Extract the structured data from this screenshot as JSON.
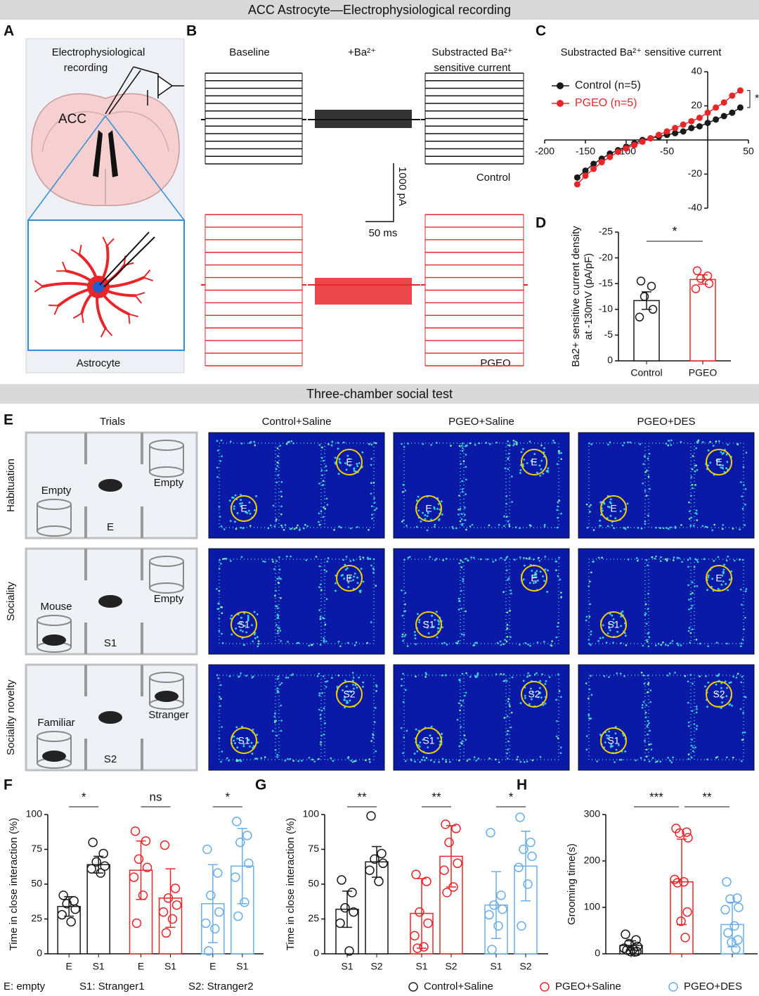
{
  "headers": [
    "ACC Astrocyte—Electrophysiological recording",
    "Three-chamber social test"
  ],
  "panel_letters": [
    "A",
    "B",
    "C",
    "D",
    "E",
    "F",
    "G",
    "H"
  ],
  "panel_a": {
    "recording_label": [
      "Electrophysiological",
      "recording"
    ],
    "region": "ACC",
    "cell": "Astrocyte"
  },
  "panel_b": {
    "columns": [
      "Baseline",
      "+Ba²⁺",
      "Substracted Ba²⁺",
      "sensitive current"
    ],
    "scale_current": "1000 pA",
    "scale_time": "50 ms",
    "groups": [
      "Control",
      "PGEO"
    ]
  },
  "panel_e": {
    "trials_title": "Trials",
    "columns": [
      "Control+Saline",
      "PGEO+Saline",
      "PGEO+DES"
    ],
    "rows": [
      "Habituation",
      "Sociality",
      "Sociality novelty"
    ],
    "schematic": [
      [
        "Empty",
        "Empty",
        "E"
      ],
      [
        "Mouse",
        "Empty",
        "S1"
      ],
      [
        "Familiar",
        "Stranger",
        "S2"
      ]
    ],
    "zones": [
      [
        "E",
        "E"
      ],
      [
        "S1",
        "E"
      ],
      [
        "S1",
        "S2"
      ]
    ]
  },
  "key": [
    "E: empty",
    "S1: Stranger1",
    "S2: Stranger2"
  ],
  "legend": [
    {
      "name": "Control+Saline",
      "color": "#1a1a1a"
    },
    {
      "name": "PGEO+Saline",
      "color": "#e8262a"
    },
    {
      "name": "PGEO+DES",
      "color": "#6aaee8"
    }
  ],
  "chart_data": [
    {
      "type": "line",
      "title": "Substracted Ba²⁺ sensitive current",
      "x": [
        -160,
        -150,
        -140,
        -130,
        -120,
        -110,
        -100,
        -90,
        -80,
        -70,
        -60,
        -50,
        -40,
        -30,
        -20,
        -10,
        0,
        10,
        20,
        30,
        40
      ],
      "series": [
        {
          "name": "Control (n=5)",
          "color": "#1a1a1a",
          "values": [
            -22,
            -18,
            -14,
            -11,
            -8,
            -6,
            -4,
            -2,
            0,
            1,
            2,
            3,
            4,
            5,
            7,
            8,
            10,
            12,
            14,
            16,
            19
          ]
        },
        {
          "name": "PGEO (n=5)",
          "color": "#e8262a",
          "values": [
            -26,
            -21,
            -17,
            -13,
            -10,
            -7,
            -5,
            -3,
            -1,
            1,
            3,
            5,
            7,
            9,
            11,
            13,
            16,
            19,
            22,
            26,
            29
          ]
        }
      ],
      "xlim": [
        -200,
        50
      ],
      "xticks": [
        -200,
        -150,
        -100,
        -50,
        50
      ],
      "ylim": [
        -40,
        40
      ],
      "yticks": [
        -40,
        -20,
        20,
        40
      ],
      "significance": "*"
    },
    {
      "type": "bar",
      "y_label": [
        "Ba2+ sensitive current density",
        "at -130mV (pA/pF)"
      ],
      "categories": [
        "Control",
        "PGEO"
      ],
      "values": [
        -11.7,
        -15.8
      ],
      "errors": [
        1.7,
        0.9
      ],
      "points": [
        [
          -15.5,
          -14.5,
          -12.5,
          -10,
          -8.5
        ],
        [
          -17.5,
          -16.5,
          -16,
          -15,
          -14
        ]
      ],
      "colors": [
        "#1a1a1a",
        "#e8262a"
      ],
      "ylim": [
        0,
        -25
      ],
      "yticks": [
        0,
        -5,
        -10,
        -15,
        -20,
        -25
      ],
      "significance": "*"
    },
    {
      "type": "grouped-bar",
      "y_label": "Time in close interaction (%)",
      "categories": [
        "E",
        "S1"
      ],
      "series": [
        {
          "color": "#1a1a1a",
          "values": [
            34,
            64
          ],
          "errors": [
            7,
            6
          ],
          "points": [
            [
              42,
              38,
              36,
              32,
              28,
              23
            ],
            [
              80,
              72,
              66,
              63,
              61,
              58
            ]
          ],
          "significance": "*"
        },
        {
          "color": "#e8262a",
          "values": [
            60,
            40
          ],
          "errors": [
            21,
            21
          ],
          "points": [
            [
              88,
              81,
              68,
              62,
              55,
              42,
              22
            ],
            [
              78,
              47,
              40,
              35,
              30,
              25,
              15
            ]
          ],
          "significance": "ns"
        },
        {
          "color": "#6aaee8",
          "values": [
            36,
            63
          ],
          "errors": [
            28,
            27
          ],
          "points": [
            [
              75,
              58,
              42,
              30,
              22,
              18,
              2
            ],
            [
              95,
              85,
              80,
              65,
              55,
              37,
              27
            ]
          ],
          "significance": "*"
        }
      ],
      "ylim": [
        0,
        100
      ],
      "yticks": [
        0,
        25,
        50,
        75,
        100
      ]
    },
    {
      "type": "grouped-bar",
      "y_label": "Time in close interaction (%)",
      "categories": [
        "S1",
        "S2"
      ],
      "series": [
        {
          "color": "#1a1a1a",
          "values": [
            32,
            66
          ],
          "errors": [
            13,
            11
          ],
          "points": [
            [
              53,
              44,
              33,
              30,
              22,
              2
            ],
            [
              99,
              72,
              68,
              65,
              60,
              52
            ]
          ],
          "significance": "**"
        },
        {
          "color": "#e8262a",
          "values": [
            29,
            70
          ],
          "errors": [
            25,
            22
          ],
          "points": [
            [
              57,
              52,
              30,
              22,
              13,
              5,
              4
            ],
            [
              93,
              90,
              80,
              65,
              60,
              48,
              44
            ]
          ],
          "significance": "**"
        },
        {
          "color": "#6aaee8",
          "values": [
            35,
            63
          ],
          "errors": [
            24,
            25
          ],
          "points": [
            [
              87,
              42,
              35,
              32,
              28,
              20,
              3
            ],
            [
              98,
              80,
              75,
              70,
              62,
              50,
              20
            ]
          ],
          "significance": "*"
        }
      ],
      "ylim": [
        0,
        100
      ],
      "yticks": [
        0,
        25,
        50,
        75,
        100
      ]
    },
    {
      "type": "grouped-bar",
      "y_label": "Grooming time(s)",
      "categories": [
        null
      ],
      "series": [
        {
          "color": "#1a1a1a",
          "values": [
            18
          ],
          "errors": [
            10
          ],
          "points": [
            [
              42,
              30,
              22,
              16,
              12,
              10,
              8,
              5,
              5,
              4
            ]
          ]
        },
        {
          "color": "#e8262a",
          "values": [
            155
          ],
          "errors": [
            92
          ],
          "points": [
            [
              270,
              262,
              260,
              250,
              160,
              155,
              153,
              90,
              70,
              35
            ]
          ]
        },
        {
          "color": "#6aaee8",
          "values": [
            63
          ],
          "errors": [
            48
          ],
          "points": [
            [
              155,
              120,
              118,
              100,
              95,
              60,
              45,
              30,
              25,
              10
            ]
          ]
        }
      ],
      "ylim": [
        0,
        300
      ],
      "yticks": [
        0,
        100,
        200,
        300
      ],
      "significance": [
        "***",
        "**"
      ]
    }
  ]
}
